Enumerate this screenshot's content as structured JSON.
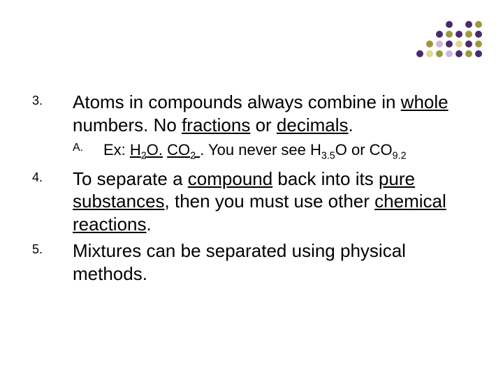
{
  "dots": {
    "colors": {
      "olive": "#9a9a3d",
      "purple": "#4a2a6a",
      "ltpurple": "#cbb9db",
      "ltolive": "#dada90",
      "white": "#ffffff"
    },
    "grid": [
      [
        "white",
        "white",
        "white",
        "purple",
        "white",
        "purple",
        "olive"
      ],
      [
        "white",
        "white",
        "purple",
        "olive",
        "purple",
        "olive",
        "purple"
      ],
      [
        "white",
        "olive",
        "ltpurple",
        "purple",
        "ltolive",
        "purple",
        "olive"
      ],
      [
        "purple",
        "ltolive",
        "olive",
        "ltpurple",
        "purple",
        "olive",
        "purple"
      ]
    ]
  },
  "items": {
    "n3": {
      "num": "3.",
      "pre": "Atoms in compounds always combine in ",
      "u1": "whole",
      "mid1": " numbers. No ",
      "u2": "fractions",
      "mid2": " or ",
      "u3": "decimals",
      "post": "."
    },
    "nA": {
      "num": "A.",
      "pre": "Ex: ",
      "u1a": "H",
      "u1sub": "2",
      "u1b": "O.",
      "sp1": " ",
      "u2a": "CO",
      "u2sub": "2",
      "u2b": " ",
      "mid": ". You never see H",
      "s1": "3.5",
      "mid2": "O or CO",
      "s2": "9.2"
    },
    "n4": {
      "num": "4.",
      "pre": "To separate a ",
      "u1": "compound",
      "mid1": " back into its ",
      "u2": "pure substances",
      "mid2": ", then you must use other ",
      "u3": "chemical reactions",
      "post": "."
    },
    "n5": {
      "num": "5.",
      "text": "Mixtures can be separated using physical methods."
    }
  }
}
